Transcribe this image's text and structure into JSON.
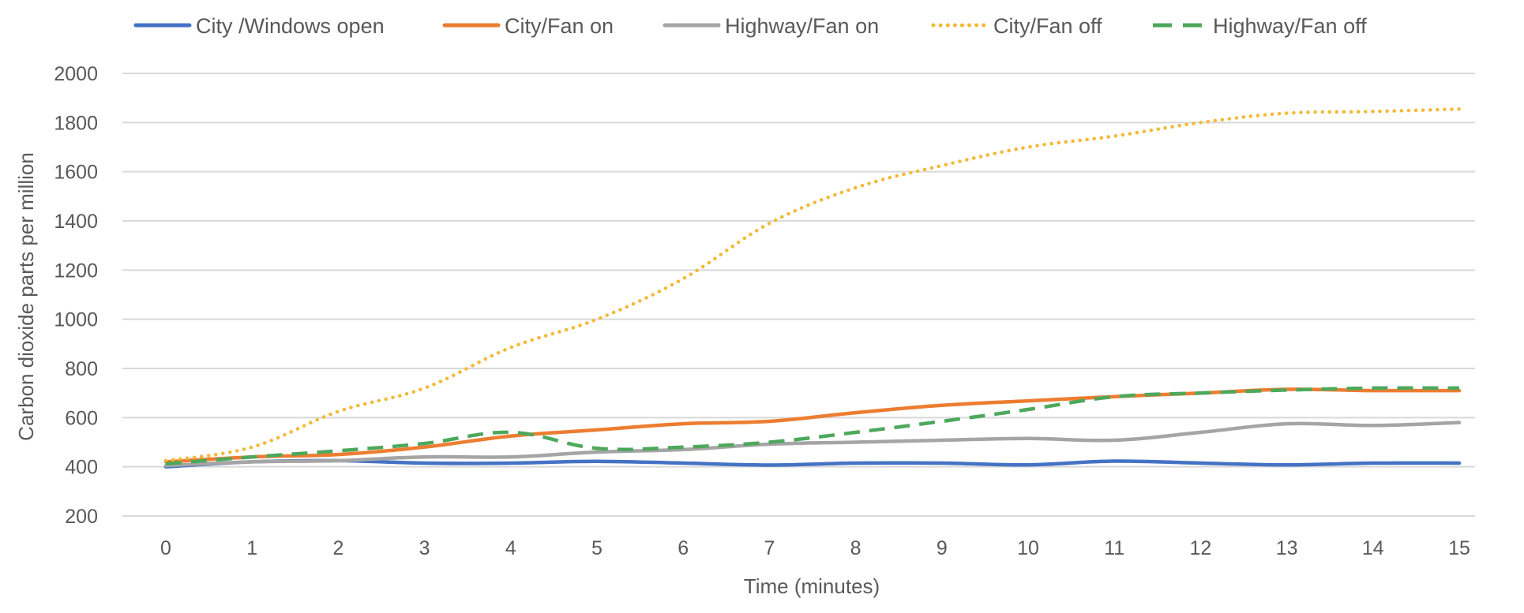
{
  "chart_data": {
    "type": "line",
    "title": "",
    "xlabel": "Time (minutes)",
    "ylabel": "Carbon dioxide parts per million",
    "x": [
      0,
      1,
      2,
      3,
      4,
      5,
      6,
      7,
      8,
      9,
      10,
      11,
      12,
      13,
      14,
      15
    ],
    "ylim": [
      200,
      2000
    ],
    "yticks": [
      200,
      400,
      600,
      800,
      1000,
      1200,
      1400,
      1600,
      1800,
      2000
    ],
    "grid": true,
    "legend_position": "top",
    "series": [
      {
        "name": "City /Windows open",
        "color": "#4472c4",
        "dash": "solid",
        "values": [
          400,
          420,
          425,
          415,
          415,
          422,
          415,
          407,
          415,
          415,
          408,
          423,
          415,
          408,
          415,
          415
        ]
      },
      {
        "name": "City/Fan on",
        "color": "#ed7d31",
        "dash": "solid",
        "values": [
          420,
          440,
          450,
          480,
          525,
          550,
          575,
          585,
          620,
          650,
          668,
          685,
          700,
          715,
          710,
          710
        ]
      },
      {
        "name": "Highway/Fan on",
        "color": "#a5a5a5",
        "dash": "solid",
        "values": [
          405,
          420,
          425,
          440,
          440,
          460,
          470,
          492,
          500,
          508,
          515,
          508,
          540,
          575,
          568,
          580
        ]
      },
      {
        "name": "City/Fan off",
        "color": "#f4b937",
        "dash": "dotted",
        "values": [
          425,
          480,
          625,
          720,
          885,
          1000,
          1165,
          1390,
          1535,
          1625,
          1700,
          1745,
          1800,
          1838,
          1845,
          1855
        ]
      },
      {
        "name": "Highway/Fan off",
        "color": "#4ea85c",
        "dash": "dashed",
        "values": [
          412,
          440,
          465,
          495,
          540,
          475,
          480,
          500,
          540,
          585,
          633,
          685,
          700,
          712,
          720,
          720
        ]
      }
    ]
  }
}
